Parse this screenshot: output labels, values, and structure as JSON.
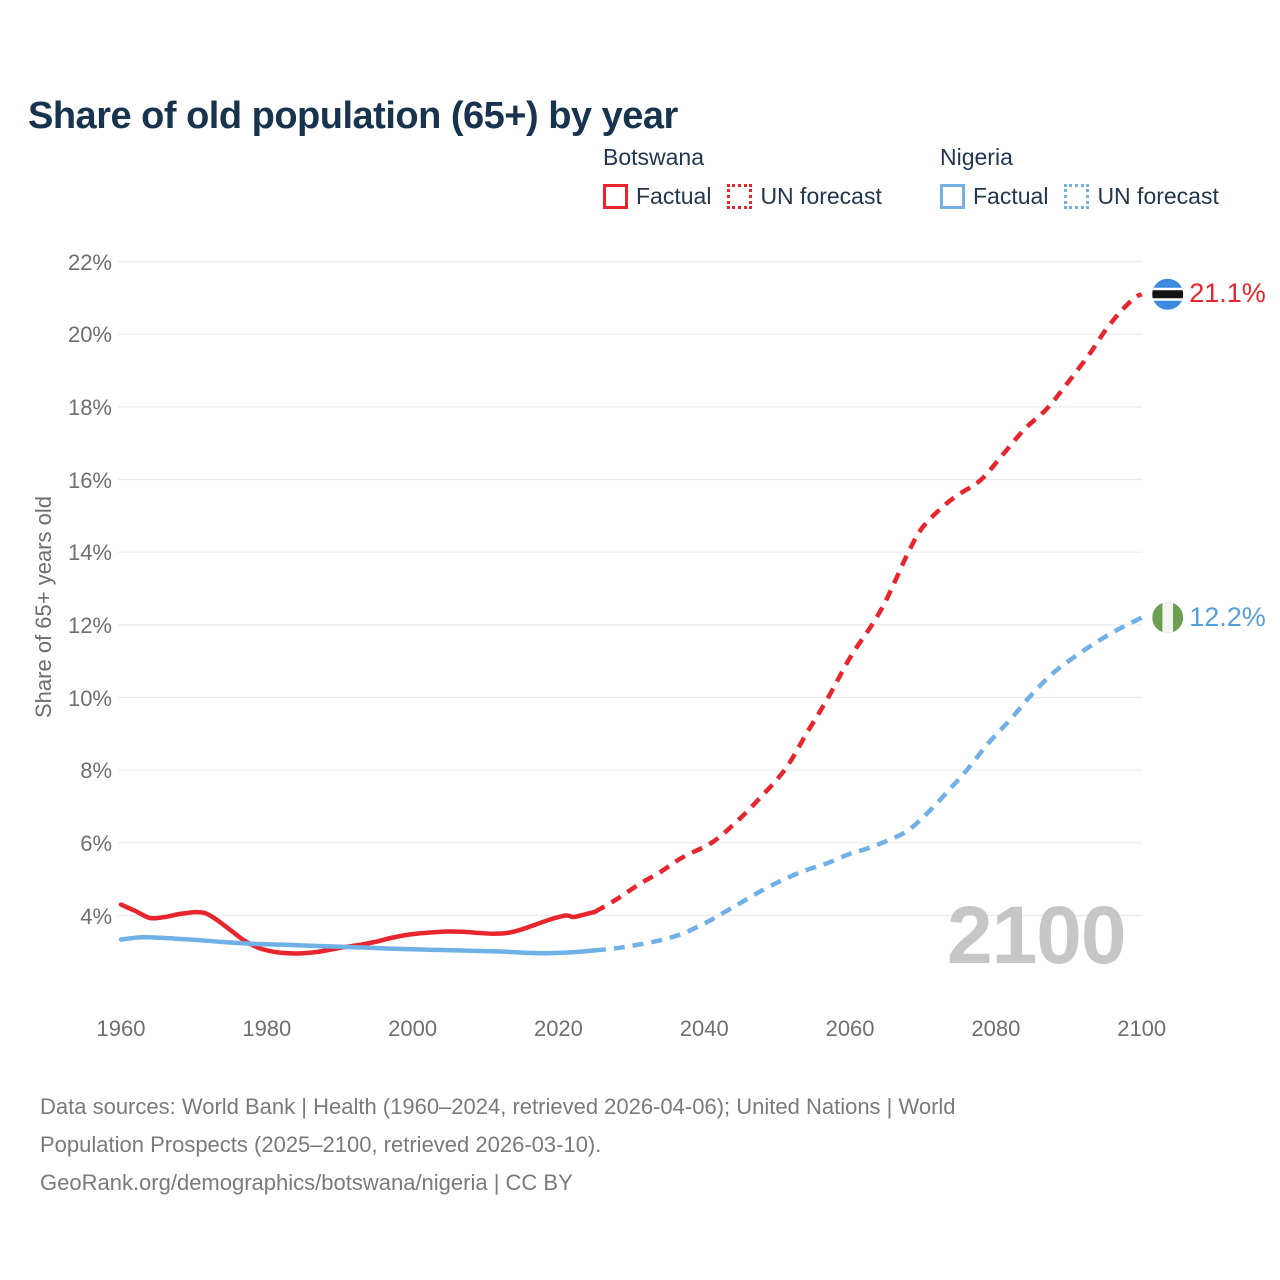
{
  "title": "Share of old population (65+) by year",
  "watermark": "2100",
  "legend": {
    "groups": [
      {
        "name": "Botswana",
        "color": "#e8242c",
        "items": [
          {
            "label": "Factual",
            "style": "solid"
          },
          {
            "label": "UN forecast",
            "style": "dotted"
          }
        ]
      },
      {
        "name": "Nigeria",
        "color": "#74b0e4",
        "items": [
          {
            "label": "Factual",
            "style": "solid"
          },
          {
            "label": "UN forecast",
            "style": "dotted"
          }
        ]
      }
    ]
  },
  "chart_data": {
    "type": "line",
    "title": "Share of old population (65+) by year",
    "xlabel": "",
    "ylabel": "Share of 65+ years old",
    "grid": "horizontal",
    "legend_position": "top-right",
    "xlim": [
      1960,
      2100
    ],
    "ylim": [
      2.7,
      22.6
    ],
    "y_axis": {
      "label": "Share of 65+ years old",
      "ticks": [
        4,
        6,
        8,
        10,
        12,
        14,
        16,
        18,
        20,
        22
      ],
      "tick_labels": [
        "4%",
        "6%",
        "8%",
        "10%",
        "12%",
        "14%",
        "16%",
        "18%",
        "20%",
        "22%"
      ]
    },
    "x_axis": {
      "ticks": [
        1960,
        1980,
        2000,
        2020,
        2040,
        2060,
        2080,
        2100
      ],
      "tick_labels": [
        "1960",
        "1980",
        "2000",
        "2020",
        "2040",
        "2060",
        "2080",
        "2100"
      ]
    },
    "series": [
      {
        "name": "Botswana — Factual",
        "country": "Botswana",
        "segment": "factual",
        "color": "#e8242c",
        "style": "solid",
        "points": [
          [
            1960,
            4.3
          ],
          [
            1962,
            4.12
          ],
          [
            1964,
            3.93
          ],
          [
            1966,
            3.96
          ],
          [
            1968,
            4.04
          ],
          [
            1970,
            4.09
          ],
          [
            1971.5,
            4.07
          ],
          [
            1973,
            3.9
          ],
          [
            1975,
            3.6
          ],
          [
            1977,
            3.3
          ],
          [
            1979,
            3.1
          ],
          [
            1981,
            3.0
          ],
          [
            1983,
            2.96
          ],
          [
            1985,
            2.96
          ],
          [
            1987,
            3.0
          ],
          [
            1989,
            3.07
          ],
          [
            1991,
            3.14
          ],
          [
            1993,
            3.2
          ],
          [
            1995,
            3.28
          ],
          [
            1997,
            3.38
          ],
          [
            1999,
            3.46
          ],
          [
            2001,
            3.51
          ],
          [
            2003,
            3.54
          ],
          [
            2005,
            3.56
          ],
          [
            2007,
            3.55
          ],
          [
            2009,
            3.52
          ],
          [
            2011,
            3.5
          ],
          [
            2013,
            3.52
          ],
          [
            2015,
            3.62
          ],
          [
            2017,
            3.76
          ],
          [
            2019,
            3.9
          ],
          [
            2021,
            4.0
          ],
          [
            2022,
            3.96
          ],
          [
            2023,
            4.0
          ],
          [
            2025,
            4.1
          ]
        ]
      },
      {
        "name": "Botswana — UN forecast",
        "country": "Botswana",
        "segment": "forecast",
        "color": "#e8242c",
        "style": "dashed",
        "points": [
          [
            2025,
            4.1
          ],
          [
            2028,
            4.45
          ],
          [
            2031,
            4.85
          ],
          [
            2034,
            5.2
          ],
          [
            2037,
            5.6
          ],
          [
            2041,
            6.0
          ],
          [
            2044,
            6.5
          ],
          [
            2047,
            7.1
          ],
          [
            2051,
            8.0
          ],
          [
            2054,
            9.0
          ],
          [
            2057,
            10.0
          ],
          [
            2060,
            11.1
          ],
          [
            2063,
            12.0
          ],
          [
            2065,
            12.7
          ],
          [
            2068,
            14.0
          ],
          [
            2070,
            14.7
          ],
          [
            2073,
            15.3
          ],
          [
            2075,
            15.6
          ],
          [
            2078,
            16.0
          ],
          [
            2081,
            16.7
          ],
          [
            2084,
            17.4
          ],
          [
            2087,
            17.95
          ],
          [
            2090,
            18.7
          ],
          [
            2093,
            19.5
          ],
          [
            2095,
            20.1
          ],
          [
            2097,
            20.6
          ],
          [
            2099,
            21.0
          ],
          [
            2100,
            21.1
          ]
        ]
      },
      {
        "name": "Nigeria — Factual",
        "country": "Nigeria",
        "segment": "factual",
        "color": "#6fb0e6",
        "style": "solid",
        "points": [
          [
            1960,
            3.34
          ],
          [
            1963,
            3.4
          ],
          [
            1966,
            3.38
          ],
          [
            1970,
            3.33
          ],
          [
            1974,
            3.27
          ],
          [
            1978,
            3.22
          ],
          [
            1982,
            3.2
          ],
          [
            1986,
            3.17
          ],
          [
            1990,
            3.14
          ],
          [
            1994,
            3.11
          ],
          [
            1998,
            3.08
          ],
          [
            2002,
            3.06
          ],
          [
            2006,
            3.04
          ],
          [
            2010,
            3.02
          ],
          [
            2013,
            3.0
          ],
          [
            2016,
            2.97
          ],
          [
            2018,
            2.96
          ],
          [
            2020,
            2.97
          ],
          [
            2022,
            2.99
          ],
          [
            2025,
            3.04
          ]
        ]
      },
      {
        "name": "Nigeria — UN forecast",
        "country": "Nigeria",
        "segment": "forecast",
        "color": "#6fb0e6",
        "style": "dashed",
        "points": [
          [
            2025,
            3.04
          ],
          [
            2028,
            3.1
          ],
          [
            2031,
            3.2
          ],
          [
            2034,
            3.32
          ],
          [
            2037,
            3.5
          ],
          [
            2040,
            3.78
          ],
          [
            2042,
            4.0
          ],
          [
            2045,
            4.35
          ],
          [
            2048,
            4.7
          ],
          [
            2051,
            5.0
          ],
          [
            2054,
            5.25
          ],
          [
            2057,
            5.45
          ],
          [
            2060,
            5.7
          ],
          [
            2062,
            5.82
          ],
          [
            2065,
            6.05
          ],
          [
            2068,
            6.35
          ],
          [
            2071,
            6.9
          ],
          [
            2074,
            7.55
          ],
          [
            2076,
            8.0
          ],
          [
            2079,
            8.75
          ],
          [
            2082,
            9.4
          ],
          [
            2085,
            10.1
          ],
          [
            2088,
            10.7
          ],
          [
            2091,
            11.15
          ],
          [
            2094,
            11.55
          ],
          [
            2097,
            11.9
          ],
          [
            2099,
            12.1
          ],
          [
            2100,
            12.2
          ]
        ]
      }
    ],
    "end_labels": [
      {
        "series": "Botswana",
        "text": "21.1%",
        "value": 21.1,
        "color": "#e8242c",
        "flag": "botswana"
      },
      {
        "series": "Nigeria",
        "text": "12.2%",
        "value": 12.2,
        "color": "#559fdd",
        "flag": "nigeria"
      }
    ],
    "flag_colors": {
      "botswana": {
        "blue": "#3c8ae0",
        "black": "#131313",
        "white": "#ffffff"
      },
      "nigeria": {
        "green": "#6d9e52",
        "white": "#f4f6f1"
      }
    },
    "grid_color": "#ebebeb",
    "watermark": "2100"
  },
  "footer": {
    "lines": [
      "Data sources: World Bank | Health (1960–2024, retrieved 2026-04-06); United Nations | World",
      "Population Prospects (2025–2100, retrieved 2026-03-10).",
      "GeoRank.org/demographics/botswana/nigeria | CC BY"
    ]
  }
}
